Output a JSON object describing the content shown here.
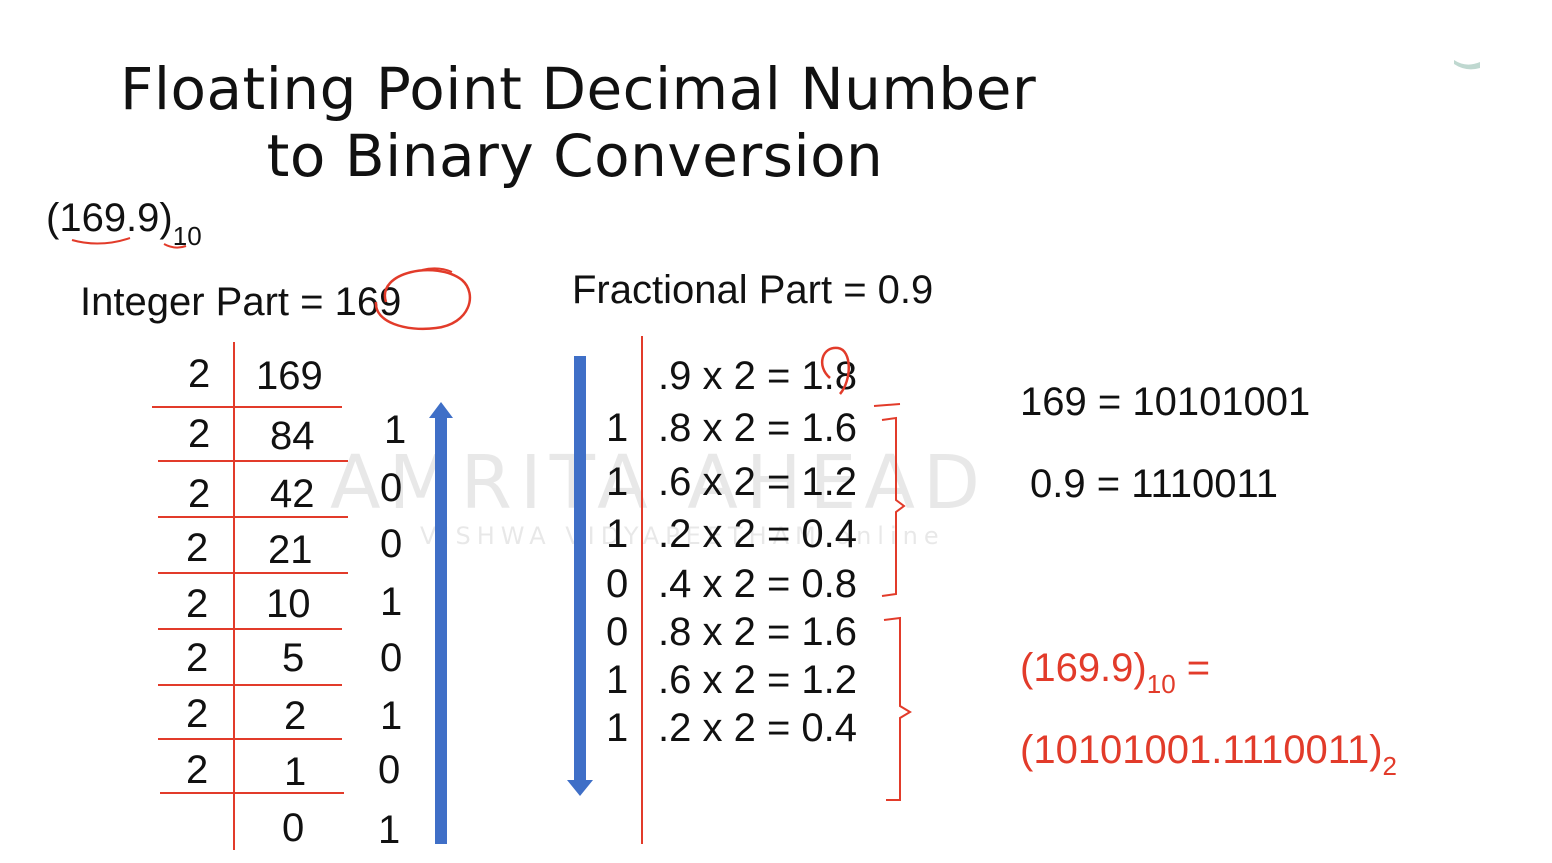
{
  "title": {
    "line1": "Floating Point Decimal Number",
    "line2": "to Binary Conversion"
  },
  "input_number": {
    "value": "(169.9)",
    "base": "10"
  },
  "integer_part": {
    "label": "Integer Part = ",
    "value": "169"
  },
  "fractional_part": {
    "label": "Fractional Part = 0.9"
  },
  "division": {
    "divisor": "2",
    "rows": [
      {
        "quotient": "169",
        "remainder": ""
      },
      {
        "quotient": "84",
        "remainder": "1"
      },
      {
        "quotient": "42",
        "remainder": "0"
      },
      {
        "quotient": "21",
        "remainder": "0"
      },
      {
        "quotient": "10",
        "remainder": "1"
      },
      {
        "quotient": "5",
        "remainder": "0"
      },
      {
        "quotient": "2",
        "remainder": "1"
      },
      {
        "quotient": "1",
        "remainder": "0"
      },
      {
        "quotient": "0",
        "remainder": "1"
      }
    ]
  },
  "multiplication": {
    "rows": [
      {
        "bit": "",
        "expr": ".9 x 2 = 1.8"
      },
      {
        "bit": "1",
        "expr": ".8 x 2 = 1.6"
      },
      {
        "bit": "1",
        "expr": ".6 x 2 = 1.2"
      },
      {
        "bit": "1",
        "expr": ".2 x 2 = 0.4"
      },
      {
        "bit": "0",
        "expr": ".4 x 2 = 0.8"
      },
      {
        "bit": "0",
        "expr": ".8 x 2 = 1.6"
      },
      {
        "bit": "1",
        "expr": ".6 x 2 = 1.2"
      },
      {
        "bit": "1",
        "expr": ".2 x 2 = 0.4"
      }
    ]
  },
  "results": {
    "integer": "169 = 10101001",
    "fraction": "0.9 = 1110011"
  },
  "final": {
    "lhs": "(169.9)",
    "lhs_base": "10",
    "equals": " =",
    "rhs": "(10101001.1110011)",
    "rhs_base": "2"
  },
  "watermark": {
    "brand": "AMRITA AHEAD",
    "sub": "VISHWA VIDYAPEETHAM online"
  },
  "colors": {
    "accent_red": "#e23b2a",
    "arrow_blue": "#3f6fc7",
    "text": "#111111"
  }
}
